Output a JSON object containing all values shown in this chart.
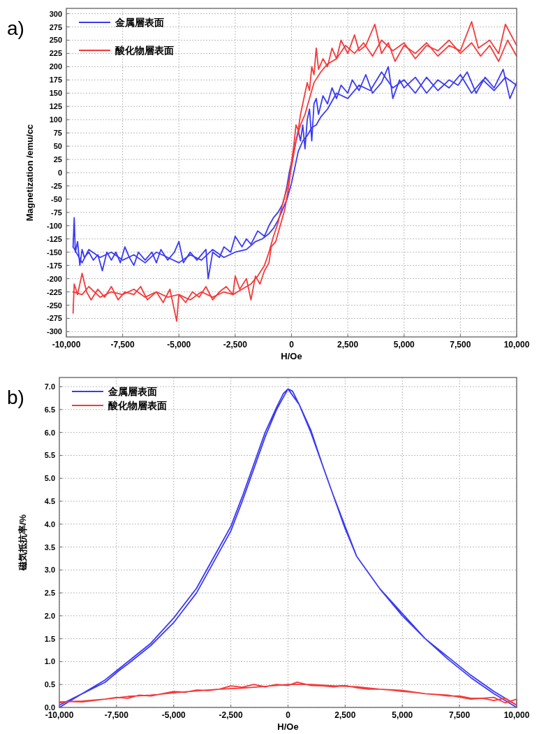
{
  "chart_data": [
    {
      "type": "line",
      "title": "a)",
      "xlabel": "H/Oe",
      "ylabel": "Magnetization /emu/cc",
      "legend": "top left",
      "grid": true,
      "xlim": [
        -10000,
        10000
      ],
      "ylim": [
        -310,
        310
      ],
      "xticks": [
        {
          "value": -10000,
          "label": "-10,000"
        },
        {
          "value": -7500,
          "label": "-7,500"
        },
        {
          "value": -5000,
          "label": "-5,000"
        },
        {
          "value": -2500,
          "label": "-2,500"
        },
        0,
        {
          "value": 2500,
          "label": "2,500"
        },
        {
          "value": 5000,
          "label": "5,000"
        },
        {
          "value": 7500,
          "label": "7,500"
        },
        {
          "value": 10000,
          "label": "10,000"
        }
      ],
      "yticks": [
        -300,
        -275,
        -250,
        -225,
        -200,
        -175,
        -150,
        -125,
        -100,
        -75,
        -50,
        -25,
        0,
        25,
        50,
        75,
        100,
        125,
        150,
        175,
        200,
        225,
        250,
        275,
        300
      ],
      "series": [
        {
          "name": "金属層表面",
          "color": "#3a3af5",
          "x": [
            -9700,
            -9650,
            -9600,
            -9500,
            -9400,
            -9300,
            -9200,
            -9000,
            -8800,
            -8600,
            -8400,
            -8200,
            -8000,
            -7800,
            -7600,
            -7400,
            -7200,
            -7000,
            -6800,
            -6500,
            -6200,
            -6000,
            -5800,
            -5500,
            -5200,
            -5000,
            -4800,
            -4500,
            -4200,
            -3800,
            -3700,
            -3500,
            -3200,
            -3000,
            -2700,
            -2500,
            -2200,
            -2000,
            -1800,
            -1500,
            -1200,
            -1000,
            -800,
            -600,
            -400,
            -300,
            -200,
            -100,
            0,
            100,
            200,
            300,
            400,
            500,
            600,
            700,
            800,
            900,
            1000,
            1100,
            1200,
            1400,
            1600,
            1800,
            2000,
            2200,
            2500,
            2700,
            3000,
            3300,
            3600,
            4000,
            4300,
            4500,
            4800,
            5000,
            5500,
            6000,
            6500,
            7000,
            7500,
            8000,
            8500,
            9000,
            9500,
            10000
          ],
          "values": [
            -140,
            -85,
            -150,
            -130,
            -175,
            -145,
            -160,
            -150,
            -165,
            -155,
            -185,
            -150,
            -165,
            -150,
            -170,
            -140,
            -160,
            -175,
            -150,
            -165,
            -150,
            -170,
            -145,
            -165,
            -150,
            -130,
            -170,
            -150,
            -165,
            -145,
            -200,
            -150,
            -160,
            -140,
            -150,
            -120,
            -140,
            -125,
            -135,
            -110,
            -120,
            -100,
            -85,
            -75,
            -60,
            -45,
            -25,
            0,
            20,
            40,
            60,
            80,
            60,
            90,
            45,
            100,
            120,
            60,
            130,
            140,
            110,
            145,
            130,
            160,
            140,
            165,
            150,
            175,
            155,
            185,
            150,
            170,
            200,
            140,
            175,
            160,
            180,
            150,
            175,
            160,
            185,
            150,
            175,
            155,
            180,
            165
          ]
        },
        {
          "color": "#3a3af5",
          "x": [
            10000,
            9700,
            9400,
            9000,
            8600,
            8200,
            7800,
            7400,
            7000,
            6500,
            6000,
            5500,
            5000,
            4500,
            4000,
            3500,
            3000,
            2500,
            2000,
            1600,
            1300,
            1100,
            900,
            700,
            500,
            300,
            200,
            100,
            0,
            -100,
            -200,
            -400,
            -600,
            -800,
            -1000,
            -1300,
            -1600,
            -2000,
            -2500,
            -3000,
            -3500,
            -4000,
            -4500,
            -5000,
            -5500,
            -6000,
            -6500,
            -7000,
            -7500,
            -8000,
            -8500,
            -9000,
            -9300,
            -9700
          ],
          "values": [
            170,
            140,
            195,
            160,
            180,
            150,
            190,
            165,
            175,
            155,
            180,
            150,
            175,
            160,
            190,
            155,
            165,
            140,
            150,
            120,
            105,
            90,
            85,
            70,
            60,
            40,
            20,
            0,
            -20,
            -35,
            -50,
            -70,
            -90,
            -105,
            -115,
            -125,
            -130,
            -145,
            -150,
            -160,
            -145,
            -165,
            -155,
            -170,
            -160,
            -150,
            -170,
            -155,
            -165,
            -150,
            -160,
            -145,
            -170,
            -140
          ]
        },
        {
          "name": "酸化物層表面",
          "color": "#f53a3a",
          "x": [
            -9700,
            -9650,
            -9500,
            -9300,
            -9100,
            -8900,
            -8600,
            -8300,
            -8000,
            -7700,
            -7400,
            -7000,
            -6700,
            -6400,
            -6000,
            -5700,
            -5400,
            -5100,
            -5000,
            -4700,
            -4400,
            -4100,
            -3800,
            -3500,
            -3200,
            -2900,
            -2600,
            -2500,
            -2300,
            -2000,
            -1800,
            -1600,
            -1400,
            -1200,
            -1000,
            -900,
            -700,
            -500,
            -300,
            -200,
            -100,
            0,
            100,
            200,
            300,
            400,
            500,
            600,
            700,
            800,
            900,
            1000,
            1100,
            1200,
            1400,
            1600,
            1800,
            2000,
            2200,
            2500,
            2800,
            3000,
            3300,
            3700,
            4000,
            4300,
            4600,
            5000,
            5500,
            6000,
            6500,
            7000,
            7500,
            8000,
            8300,
            8800,
            9200,
            9500,
            10000
          ],
          "values": [
            -265,
            -210,
            -230,
            -190,
            -225,
            -240,
            -220,
            -235,
            -215,
            -240,
            -225,
            -230,
            -215,
            -240,
            -225,
            -245,
            -220,
            -280,
            -230,
            -245,
            -225,
            -235,
            -215,
            -240,
            -225,
            -215,
            -230,
            -195,
            -220,
            -200,
            -240,
            -195,
            -210,
            -185,
            -170,
            -140,
            -130,
            -100,
            -70,
            -45,
            -20,
            20,
            50,
            90,
            80,
            110,
            130,
            150,
            170,
            155,
            200,
            185,
            235,
            195,
            215,
            200,
            235,
            215,
            250,
            225,
            260,
            230,
            240,
            280,
            225,
            245,
            210,
            240,
            225,
            245,
            220,
            240,
            230,
            285,
            235,
            250,
            225,
            280,
            240
          ]
        },
        {
          "color": "#f53a3a",
          "x": [
            10000,
            9600,
            9200,
            8800,
            8400,
            8000,
            7500,
            7000,
            6500,
            6000,
            5500,
            5000,
            4500,
            4000,
            3600,
            3200,
            2800,
            2400,
            2000,
            1600,
            1300,
            1000,
            800,
            600,
            400,
            200,
            0,
            -200,
            -400,
            -600,
            -800,
            -1000,
            -1200,
            -1500,
            -1800,
            -2200,
            -2600,
            -3000,
            -3500,
            -4000,
            -4500,
            -5000,
            -5500,
            -6000,
            -6500,
            -7000,
            -7500,
            -8000,
            -8500,
            -9000,
            -9300,
            -9700
          ],
          "values": [
            220,
            250,
            210,
            240,
            220,
            245,
            225,
            250,
            230,
            240,
            215,
            245,
            230,
            250,
            220,
            245,
            225,
            240,
            215,
            205,
            190,
            170,
            140,
            110,
            90,
            60,
            10,
            -30,
            -60,
            -95,
            -120,
            -150,
            -175,
            -195,
            -210,
            -220,
            -230,
            -225,
            -235,
            -225,
            -240,
            -230,
            -235,
            -225,
            -235,
            -220,
            -230,
            -225,
            -235,
            -215,
            -230,
            -225
          ]
        }
      ]
    },
    {
      "type": "line",
      "title": "b)",
      "xlabel": "H/Oe",
      "ylabel": "磁気抵抗率/%",
      "legend": "top left",
      "grid": true,
      "xlim": [
        -10000,
        10000
      ],
      "ylim": [
        0,
        7.2
      ],
      "xticks": [
        {
          "value": -10000,
          "label": "-10,000"
        },
        {
          "value": -7500,
          "label": "-7,500"
        },
        {
          "value": -5000,
          "label": "-5,000"
        },
        {
          "value": -2500,
          "label": "-2,500"
        },
        0,
        {
          "value": 2500,
          "label": "2,500"
        },
        {
          "value": 5000,
          "label": "5,000"
        },
        {
          "value": 7500,
          "label": "7,500"
        },
        {
          "value": 10000,
          "label": "10,000"
        }
      ],
      "yticks": [
        {
          "value": 0,
          "label": "0.0"
        },
        0.5,
        {
          "value": 1,
          "label": "1.0"
        },
        1.5,
        {
          "value": 2,
          "label": "2.0"
        },
        2.5,
        {
          "value": 3,
          "label": "3.0"
        },
        3.5,
        {
          "value": 4,
          "label": "4.0"
        },
        4.5,
        {
          "value": 5,
          "label": "5.0"
        },
        5.5,
        {
          "value": 6,
          "label": "6.0"
        },
        6.5,
        {
          "value": 7,
          "label": "7.0"
        }
      ],
      "series": [
        {
          "name": "金属層表面",
          "color": "#3a3af5",
          "x": [
            -10000,
            -9000,
            -8000,
            -7500,
            -7000,
            -6000,
            -5000,
            -4000,
            -3000,
            -2500,
            -2000,
            -1500,
            -1000,
            -500,
            -200,
            0,
            200,
            500,
            1000,
            1500,
            2000,
            2500,
            3000,
            4000,
            5000,
            6000,
            7000,
            8000,
            9000,
            10000,
            10000,
            9000,
            8000,
            7000,
            6000,
            5000,
            4000,
            3000,
            2500,
            2000,
            1000,
            500,
            0,
            -500,
            -1000,
            -1500,
            -2000,
            -2500,
            -3000,
            -4000,
            -5000,
            -6000,
            -7000,
            -7400,
            -8000,
            -9000,
            -10000
          ],
          "values": [
            0.05,
            0.3,
            0.6,
            0.8,
            1.0,
            1.4,
            1.95,
            2.6,
            3.5,
            3.95,
            4.6,
            5.3,
            6.0,
            6.55,
            6.85,
            6.95,
            6.9,
            6.6,
            6.05,
            5.3,
            4.6,
            3.9,
            3.3,
            2.6,
            2.0,
            1.5,
            1.05,
            0.65,
            0.3,
            0.0,
            0.05,
            0.35,
            0.7,
            1.1,
            1.5,
            2.05,
            2.6,
            3.3,
            3.95,
            4.6,
            6.0,
            6.6,
            6.95,
            6.5,
            5.9,
            5.2,
            4.5,
            3.85,
            3.4,
            2.5,
            1.85,
            1.35,
            0.95,
            0.8,
            0.55,
            0.3,
            0.0
          ]
        },
        {
          "name": "酸化物層表面",
          "color": "#f53a3a",
          "x": [
            -10000,
            -9500,
            -9000,
            -8500,
            -8000,
            -7500,
            -7000,
            -6500,
            -6000,
            -5500,
            -5000,
            -4500,
            -4000,
            -3500,
            -3000,
            -2500,
            -2000,
            -1500,
            -1000,
            -500,
            0,
            400,
            1000,
            1500,
            2000,
            2500,
            3000,
            3500,
            4000,
            4500,
            5000,
            5500,
            6000,
            6500,
            7000,
            7500,
            8000,
            8500,
            9000,
            9500,
            10000,
            10000,
            9500,
            9000,
            8000,
            7000,
            6000,
            5000,
            4000,
            3000,
            2000,
            1000,
            0,
            -1000,
            -2000,
            -3000,
            -4000,
            -5000,
            -6000,
            -7000,
            -8000,
            -9000,
            -10000
          ],
          "values": [
            0.1,
            0.13,
            0.12,
            0.15,
            0.18,
            0.22,
            0.2,
            0.27,
            0.25,
            0.3,
            0.35,
            0.33,
            0.38,
            0.37,
            0.4,
            0.47,
            0.44,
            0.5,
            0.45,
            0.5,
            0.48,
            0.55,
            0.48,
            0.47,
            0.45,
            0.48,
            0.43,
            0.4,
            0.4,
            0.38,
            0.35,
            0.33,
            0.3,
            0.28,
            0.25,
            0.25,
            0.2,
            0.2,
            0.15,
            0.2,
            0.05,
            0.18,
            0.1,
            0.22,
            0.18,
            0.27,
            0.3,
            0.37,
            0.4,
            0.45,
            0.47,
            0.5,
            0.5,
            0.46,
            0.42,
            0.4,
            0.36,
            0.32,
            0.27,
            0.24,
            0.18,
            0.14,
            0.12
          ]
        }
      ]
    }
  ]
}
